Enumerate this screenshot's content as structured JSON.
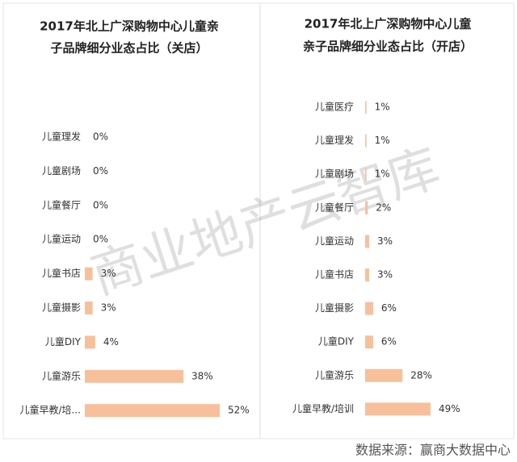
{
  "chart_data": [
    {
      "type": "bar",
      "orientation": "horizontal",
      "title": [
        "2017年北上广深购物中心儿童亲",
        "子品牌细分业态占比（关店）"
      ],
      "categories": [
        "儿童理发",
        "儿童剧场",
        "儿童餐厅",
        "儿童运动",
        "儿童书店",
        "儿童摄影",
        "儿童DIY",
        "儿童游乐",
        "儿童早教/培..."
      ],
      "values": [
        0,
        0,
        0,
        0,
        3,
        3,
        4,
        38,
        52
      ],
      "value_labels": [
        "0%",
        "0%",
        "0%",
        "0%",
        "3%",
        "3%",
        "4%",
        "38%",
        "52%"
      ],
      "color": "#f7c09b"
    },
    {
      "type": "bar",
      "orientation": "horizontal",
      "title": [
        "2017年北上广深购物中心儿童",
        "亲子品牌细分业态占比（开店）"
      ],
      "categories": [
        "儿童医疗",
        "儿童理发",
        "儿童剧场",
        "儿童餐厅",
        "儿童运动",
        "儿童书店",
        "儿童摄影",
        "儿童DIY",
        "儿童游乐",
        "儿童早教/培训"
      ],
      "values": [
        1,
        1,
        1,
        2,
        3,
        3,
        6,
        6,
        28,
        49
      ],
      "value_labels": [
        "1%",
        "1%",
        "1%",
        "2%",
        "3%",
        "3%",
        "6%",
        "6%",
        "28%",
        "49%"
      ],
      "color": "#f7c09b"
    }
  ],
  "watermark": "商业地产云智库",
  "source": "数据来源：赢商大数据中心"
}
